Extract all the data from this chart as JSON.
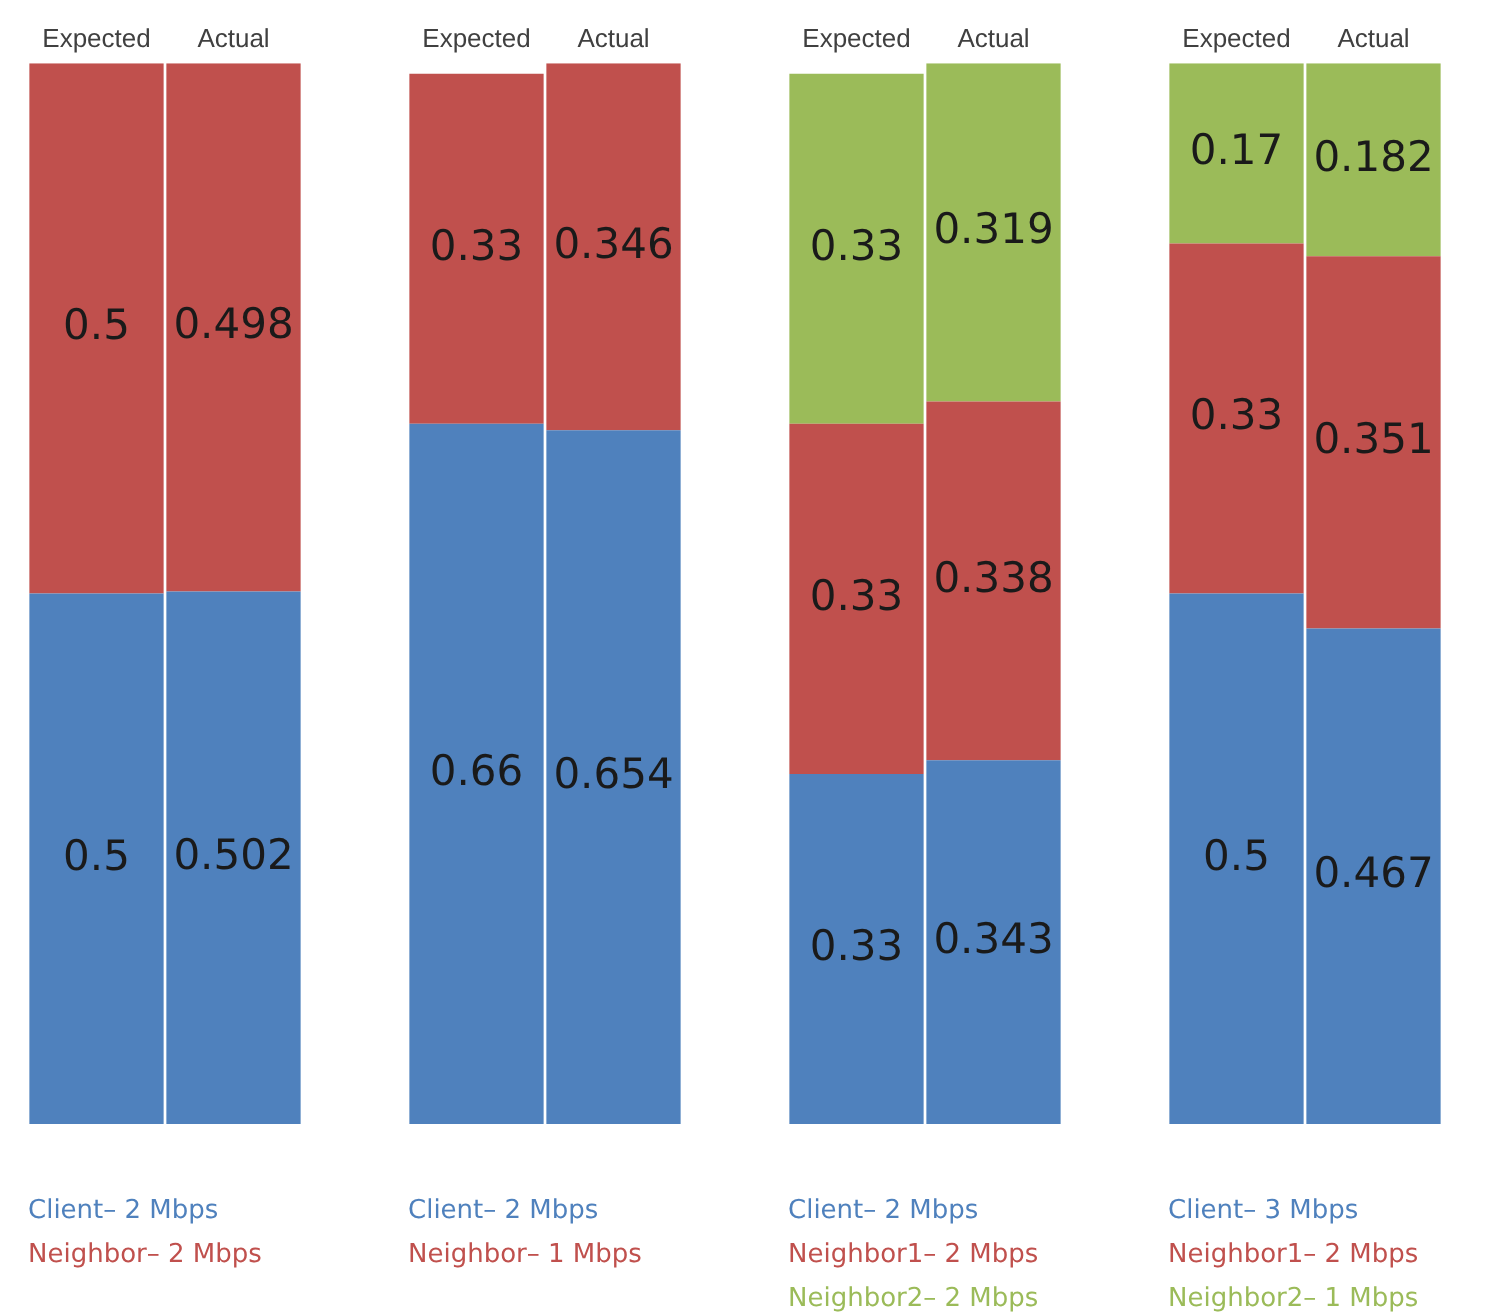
{
  "chart_data": [
    {
      "type": "bar",
      "stacked": true,
      "categories": [
        "Expected",
        "Actual"
      ],
      "ylim": [
        0,
        1
      ],
      "tick_labels": "x",
      "data_labels": true,
      "legend": "bottom",
      "series": [
        {
          "name": "Client– 2 Mbps",
          "color": "#4f81bd",
          "values": [
            0.5,
            0.502
          ]
        },
        {
          "name": "Neighbor– 2 Mbps",
          "color": "#c0504d",
          "values": [
            0.5,
            0.498
          ]
        }
      ]
    },
    {
      "type": "bar",
      "stacked": true,
      "categories": [
        "Expected",
        "Actual"
      ],
      "ylim": [
        0,
        1
      ],
      "tick_labels": "x",
      "data_labels": true,
      "legend": "bottom",
      "series": [
        {
          "name": "Client– 2 Mbps",
          "color": "#4f81bd",
          "values": [
            0.66,
            0.654
          ]
        },
        {
          "name": "Neighbor– 1 Mbps",
          "color": "#c0504d",
          "values": [
            0.33,
            0.346
          ]
        }
      ]
    },
    {
      "type": "bar",
      "stacked": true,
      "categories": [
        "Expected",
        "Actual"
      ],
      "ylim": [
        0,
        1
      ],
      "tick_labels": "x",
      "data_labels": true,
      "legend": "bottom",
      "series": [
        {
          "name": "Client– 2 Mbps",
          "color": "#4f81bd",
          "values": [
            0.33,
            0.343
          ]
        },
        {
          "name": "Neighbor1– 2 Mbps",
          "color": "#c0504d",
          "values": [
            0.33,
            0.338
          ]
        },
        {
          "name": "Neighbor2– 2 Mbps",
          "color": "#9bbb59",
          "values": [
            0.33,
            0.319
          ]
        }
      ]
    },
    {
      "type": "bar",
      "stacked": true,
      "categories": [
        "Expected",
        "Actual"
      ],
      "ylim": [
        0,
        1
      ],
      "tick_labels": "x",
      "data_labels": true,
      "legend": "bottom",
      "series": [
        {
          "name": "Client– 3 Mbps",
          "color": "#4f81bd",
          "values": [
            0.5,
            0.467
          ]
        },
        {
          "name": "Neighbor1– 2 Mbps",
          "color": "#c0504d",
          "values": [
            0.33,
            0.351
          ]
        },
        {
          "name": "Neighbor2– 1 Mbps",
          "color": "#9bbb59",
          "values": [
            0.17,
            0.182
          ]
        }
      ]
    }
  ]
}
